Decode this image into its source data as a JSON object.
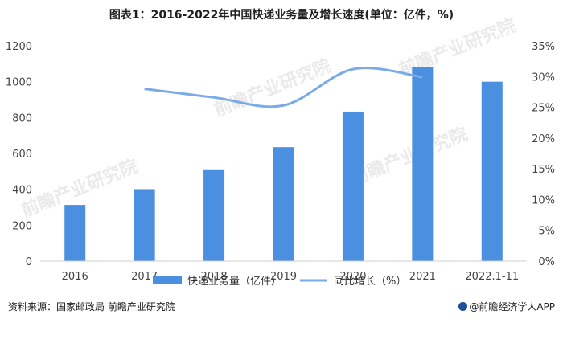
{
  "title": "图表1：2016-2022年中国快递业务量及增长速度(单位：亿件，%)",
  "source": "资料来源：国家邮政局 前瞻产业研究院",
  "brand": "@前瞻经济学人APP",
  "watermark": "前瞻产业研究院",
  "chart_data": {
    "type": "bar",
    "categories": [
      "2016",
      "2017",
      "2018",
      "2019",
      "2020",
      "2021",
      "2022.1-11"
    ],
    "series": [
      {
        "name": "快递业务量（亿件）",
        "type": "bar",
        "axis": "left",
        "color": "#4a8fe0",
        "values": [
          313,
          401,
          507,
          635,
          833,
          1083,
          1000
        ]
      },
      {
        "name": "同比增长（%）",
        "type": "line",
        "axis": "right",
        "color": "#7aabe8",
        "values": [
          null,
          28.0,
          26.6,
          25.3,
          31.2,
          29.9,
          null
        ]
      }
    ],
    "left_axis": {
      "ylim": [
        0,
        1200
      ],
      "ticks": [
        "0",
        "200",
        "400",
        "600",
        "800",
        "1000",
        "1200"
      ]
    },
    "right_axis": {
      "ylim": [
        0,
        35
      ],
      "ticks": [
        "0%",
        "5%",
        "10%",
        "15%",
        "20%",
        "25%",
        "30%",
        "35%"
      ]
    },
    "legend": {
      "placement": "bottom"
    }
  }
}
